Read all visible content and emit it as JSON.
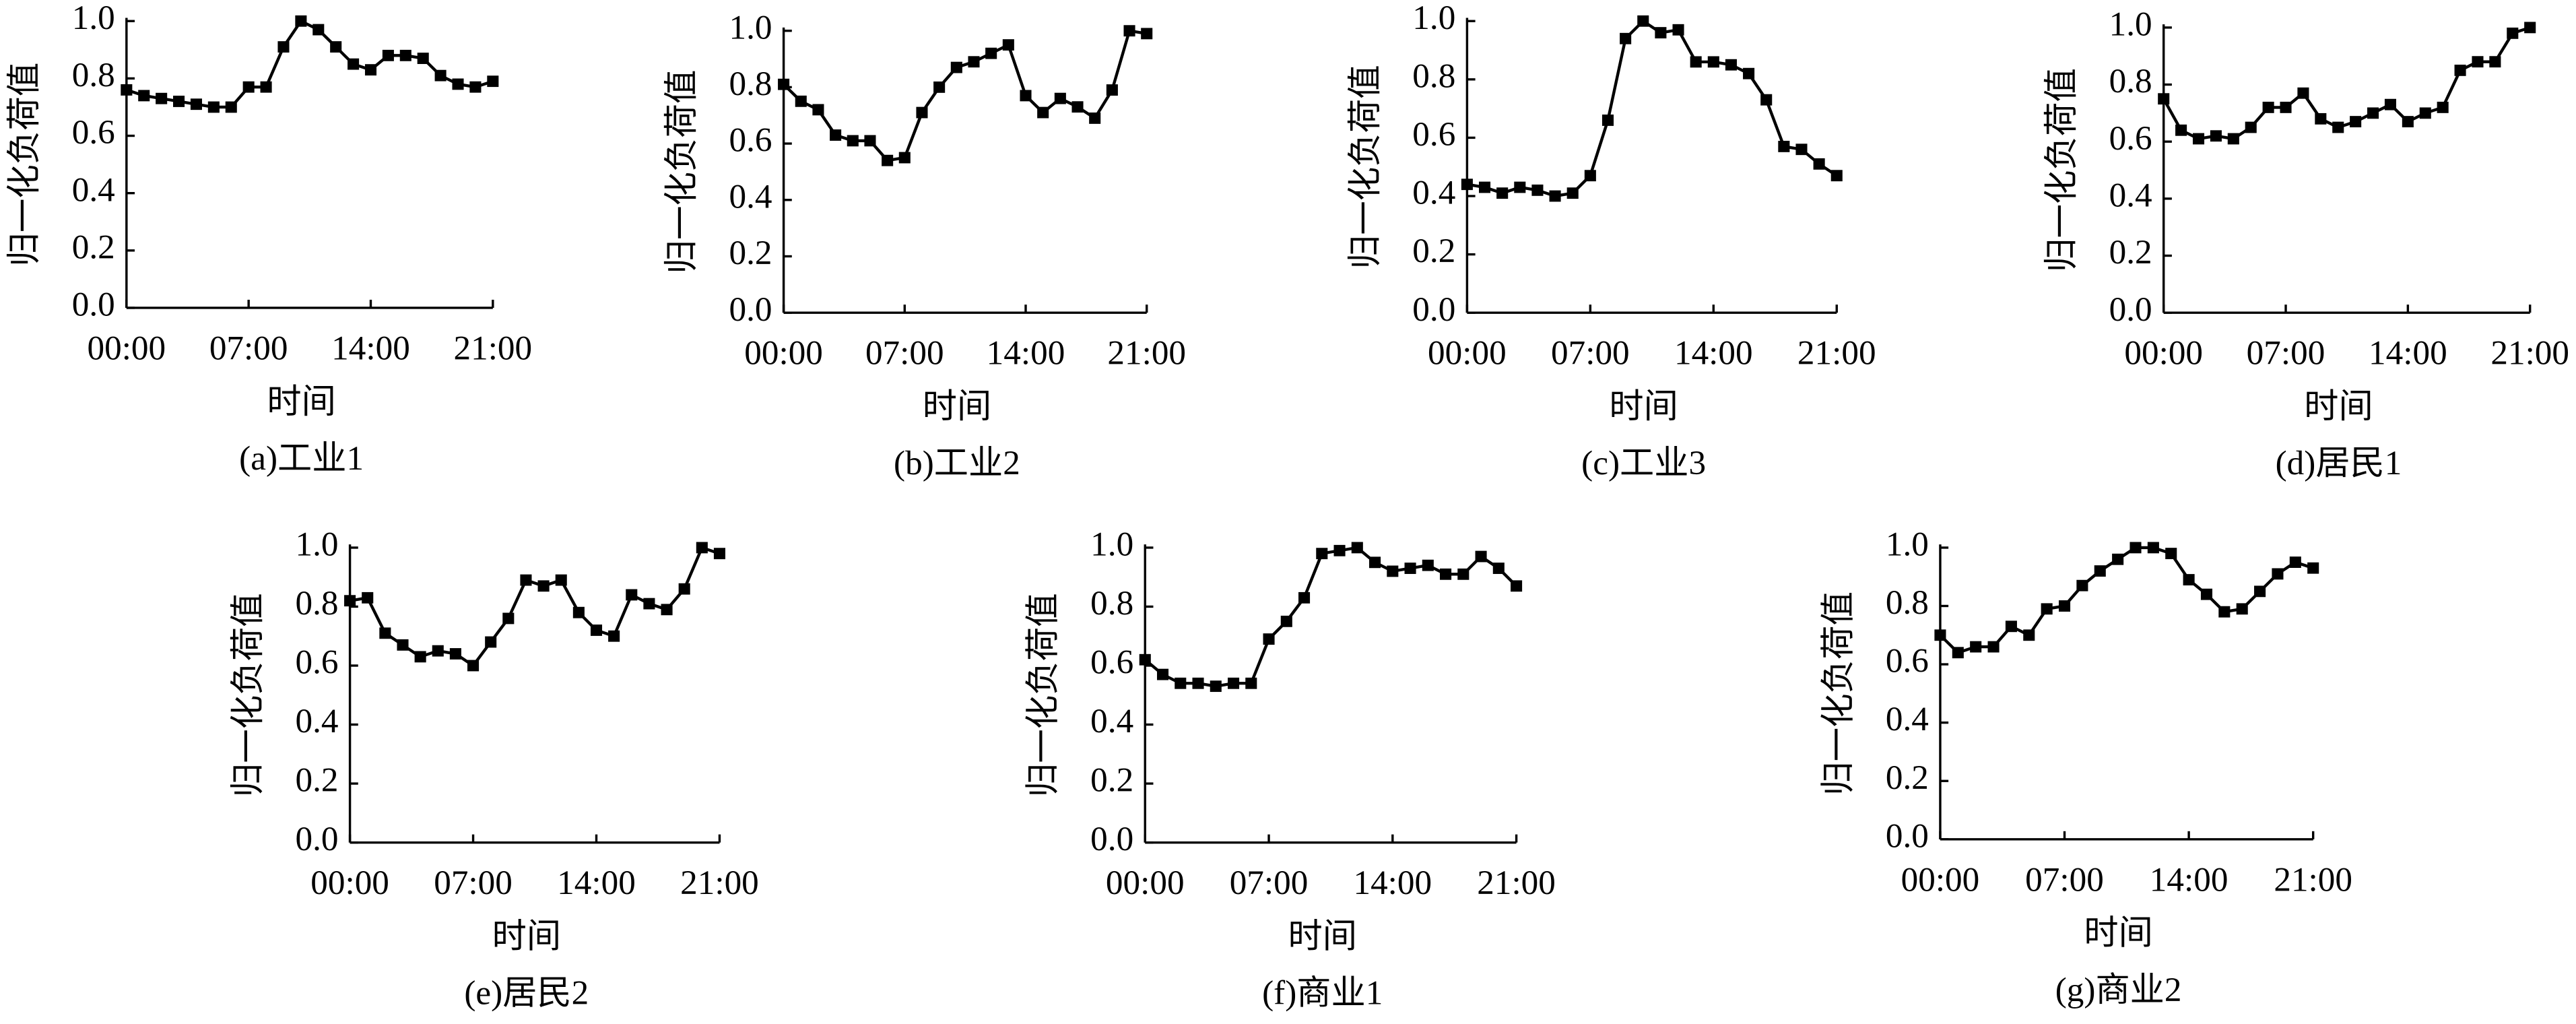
{
  "chart_data": [
    {
      "type": "line",
      "caption": "(a)工业1",
      "xlabel": "时间",
      "ylabel": "归一化负荷值",
      "categories": [
        "00:00",
        null,
        null,
        null,
        null,
        null,
        null,
        "07:00",
        null,
        null,
        null,
        null,
        null,
        null,
        "14:00",
        null,
        null,
        null,
        null,
        null,
        null,
        "21:00"
      ],
      "series": [
        {
          "color": "#000000",
          "values": [
            0.76,
            0.74,
            0.73,
            0.72,
            0.71,
            0.7,
            0.7,
            0.77,
            0.77,
            0.91,
            1.0,
            0.97,
            0.91,
            0.85,
            0.83,
            0.88,
            0.88,
            0.87,
            0.81,
            0.78,
            0.77,
            0.79
          ]
        }
      ],
      "ylim": [
        0,
        1
      ],
      "yticks": [
        {
          "value": 0,
          "label": "0.0"
        },
        0.2,
        0.4,
        0.6,
        0.8,
        {
          "value": 1,
          "label": "1.0"
        }
      ]
    },
    {
      "type": "line",
      "caption": "(b)工业2",
      "xlabel": "时间",
      "ylabel": "归一化负荷值",
      "categories": [
        "00:00",
        null,
        null,
        null,
        null,
        null,
        null,
        "07:00",
        null,
        null,
        null,
        null,
        null,
        null,
        "14:00",
        null,
        null,
        null,
        null,
        null,
        null,
        "21:00"
      ],
      "series": [
        {
          "color": "#000000",
          "values": [
            0.81,
            0.75,
            0.72,
            0.63,
            0.61,
            0.61,
            0.54,
            0.55,
            0.71,
            0.8,
            0.87,
            0.89,
            0.92,
            0.95,
            0.77,
            0.71,
            0.76,
            0.73,
            0.69,
            0.79,
            1.0,
            0.99
          ]
        }
      ],
      "ylim": [
        0,
        1
      ],
      "yticks": [
        {
          "value": 0,
          "label": "0.0"
        },
        0.2,
        0.4,
        0.6,
        0.8,
        {
          "value": 1,
          "label": "1.0"
        }
      ]
    },
    {
      "type": "line",
      "caption": "(c)工业3",
      "xlabel": "时间",
      "ylabel": "归一化负荷值",
      "categories": [
        "00:00",
        null,
        null,
        null,
        null,
        null,
        null,
        "07:00",
        null,
        null,
        null,
        null,
        null,
        null,
        "14:00",
        null,
        null,
        null,
        null,
        null,
        null,
        "21:00"
      ],
      "series": [
        {
          "color": "#000000",
          "values": [
            0.44,
            0.43,
            0.41,
            0.43,
            0.42,
            0.4,
            0.41,
            0.47,
            0.66,
            0.94,
            1.0,
            0.96,
            0.97,
            0.86,
            0.86,
            0.85,
            0.82,
            0.73,
            0.57,
            0.56,
            0.51,
            0.47
          ]
        }
      ],
      "ylim": [
        0,
        1
      ],
      "yticks": [
        {
          "value": 0,
          "label": "0.0"
        },
        0.2,
        0.4,
        0.6,
        0.8,
        {
          "value": 1,
          "label": "1.0"
        }
      ]
    },
    {
      "type": "line",
      "caption": "(d)居民1",
      "xlabel": "时间",
      "ylabel": "归一化负荷值",
      "categories": [
        "00:00",
        null,
        null,
        null,
        null,
        null,
        null,
        "07:00",
        null,
        null,
        null,
        null,
        null,
        null,
        "14:00",
        null,
        null,
        null,
        null,
        null,
        null,
        "21:00"
      ],
      "series": [
        {
          "color": "#000000",
          "values": [
            0.75,
            0.64,
            0.61,
            0.62,
            0.61,
            0.65,
            0.72,
            0.72,
            0.77,
            0.68,
            0.65,
            0.67,
            0.7,
            0.73,
            0.67,
            0.7,
            0.72,
            0.85,
            0.88,
            0.88,
            0.98,
            1.0
          ]
        }
      ],
      "ylim": [
        0,
        1
      ],
      "yticks": [
        {
          "value": 0,
          "label": "0.0"
        },
        0.2,
        0.4,
        0.6,
        0.8,
        {
          "value": 1,
          "label": "1.0"
        }
      ]
    },
    {
      "type": "line",
      "caption": "(e)居民2",
      "xlabel": "时间",
      "ylabel": "归一化负荷值",
      "categories": [
        "00:00",
        null,
        null,
        null,
        null,
        null,
        null,
        "07:00",
        null,
        null,
        null,
        null,
        null,
        null,
        "14:00",
        null,
        null,
        null,
        null,
        null,
        null,
        "21:00"
      ],
      "series": [
        {
          "color": "#000000",
          "values": [
            0.82,
            0.83,
            0.71,
            0.67,
            0.63,
            0.65,
            0.64,
            0.6,
            0.68,
            0.76,
            0.89,
            0.87,
            0.89,
            0.78,
            0.72,
            0.7,
            0.84,
            0.81,
            0.79,
            0.86,
            1.0,
            0.98
          ]
        }
      ],
      "ylim": [
        0,
        1
      ],
      "yticks": [
        {
          "value": 0,
          "label": "0.0"
        },
        0.2,
        0.4,
        0.6,
        0.8,
        {
          "value": 1,
          "label": "1.0"
        }
      ]
    },
    {
      "type": "line",
      "caption": "(f)商业1",
      "xlabel": "时间",
      "ylabel": "归一化负荷值",
      "categories": [
        "00:00",
        null,
        null,
        null,
        null,
        null,
        null,
        "07:00",
        null,
        null,
        null,
        null,
        null,
        null,
        "14:00",
        null,
        null,
        null,
        null,
        null,
        null,
        "21:00"
      ],
      "series": [
        {
          "color": "#000000",
          "values": [
            0.62,
            0.57,
            0.54,
            0.54,
            0.53,
            0.54,
            0.54,
            0.69,
            0.75,
            0.83,
            0.98,
            0.99,
            1.0,
            0.95,
            0.92,
            0.93,
            0.94,
            0.91,
            0.91,
            0.97,
            0.93,
            0.87
          ]
        }
      ],
      "ylim": [
        0,
        1
      ],
      "yticks": [
        {
          "value": 0,
          "label": "0.0"
        },
        0.2,
        0.4,
        0.6,
        0.8,
        {
          "value": 1,
          "label": "1.0"
        }
      ]
    },
    {
      "type": "line",
      "caption": "(g)商业2",
      "xlabel": "时间",
      "ylabel": "归一化负荷值",
      "categories": [
        "00:00",
        null,
        null,
        null,
        null,
        null,
        null,
        "07:00",
        null,
        null,
        null,
        null,
        null,
        null,
        "14:00",
        null,
        null,
        null,
        null,
        null,
        null,
        "21:00"
      ],
      "series": [
        {
          "color": "#000000",
          "values": [
            0.7,
            0.64,
            0.66,
            0.66,
            0.73,
            0.7,
            0.79,
            0.8,
            0.87,
            0.92,
            0.96,
            1.0,
            1.0,
            0.98,
            0.89,
            0.84,
            0.78,
            0.79,
            0.85,
            0.91,
            0.95,
            0.93
          ]
        }
      ],
      "ylim": [
        0,
        1
      ],
      "yticks": [
        {
          "value": 0,
          "label": "0.0"
        },
        0.2,
        0.4,
        0.6,
        0.8,
        {
          "value": 1,
          "label": "1.0"
        }
      ]
    }
  ]
}
